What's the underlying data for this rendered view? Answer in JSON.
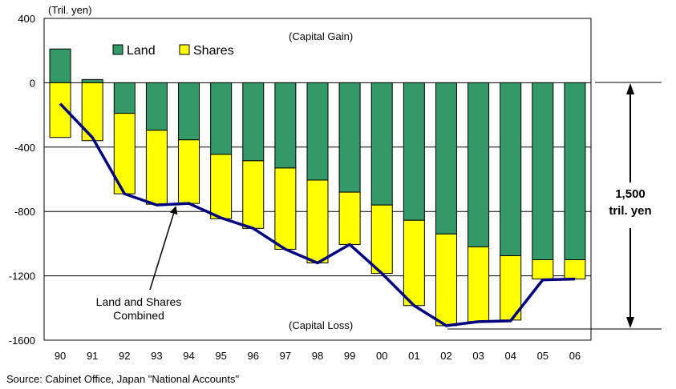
{
  "chart_data": {
    "type": "bar",
    "stacked": true,
    "unit_label": "(Tril. yen)",
    "categories": [
      "90",
      "91",
      "92",
      "93",
      "94",
      "95",
      "96",
      "97",
      "98",
      "99",
      "00",
      "01",
      "02",
      "03",
      "04",
      "05",
      "06"
    ],
    "series": [
      {
        "name": "Land",
        "color": "#339966",
        "values": [
          210,
          20,
          -190,
          -295,
          -355,
          -445,
          -485,
          -530,
          -605,
          -680,
          -760,
          -855,
          -940,
          -1020,
          -1075,
          -1100,
          -1100
        ]
      },
      {
        "name": "Shares",
        "color": "#ffff00",
        "values": [
          -340,
          -360,
          -500,
          -460,
          -395,
          -400,
          -420,
          -505,
          -515,
          -325,
          -425,
          -530,
          -570,
          -465,
          -400,
          -120,
          -120
        ]
      },
      {
        "name": "Land and Shares Combined",
        "color": "#000080",
        "type": "line",
        "values": [
          -130,
          -340,
          -690,
          -760,
          -750,
          -840,
          -905,
          -1035,
          -1120,
          -1005,
          -1185,
          -1385,
          -1510,
          -1485,
          -1480,
          -1225,
          -1220
        ]
      }
    ],
    "ylim": [
      -1600,
      400
    ],
    "yticks": [
      "400",
      "0",
      "-400",
      "-800",
      "-1200",
      "-1600"
    ],
    "ytick_values": [
      400,
      0,
      -400,
      -800,
      -1200,
      -1600
    ],
    "gridlines": [
      0,
      -400,
      -800,
      -1200
    ],
    "legend": {
      "position": "top-left",
      "items": [
        "Land",
        "Shares"
      ]
    },
    "annotations": {
      "capital_gain": "(Capital Gain)",
      "capital_loss": "(Capital Loss)",
      "combined_line1": "Land and Shares",
      "combined_line2": "Combined",
      "range_line1": "1,500",
      "range_line2": "tril. yen"
    },
    "source": "Source: Cabinet Office, Japan \"National Accounts\""
  }
}
